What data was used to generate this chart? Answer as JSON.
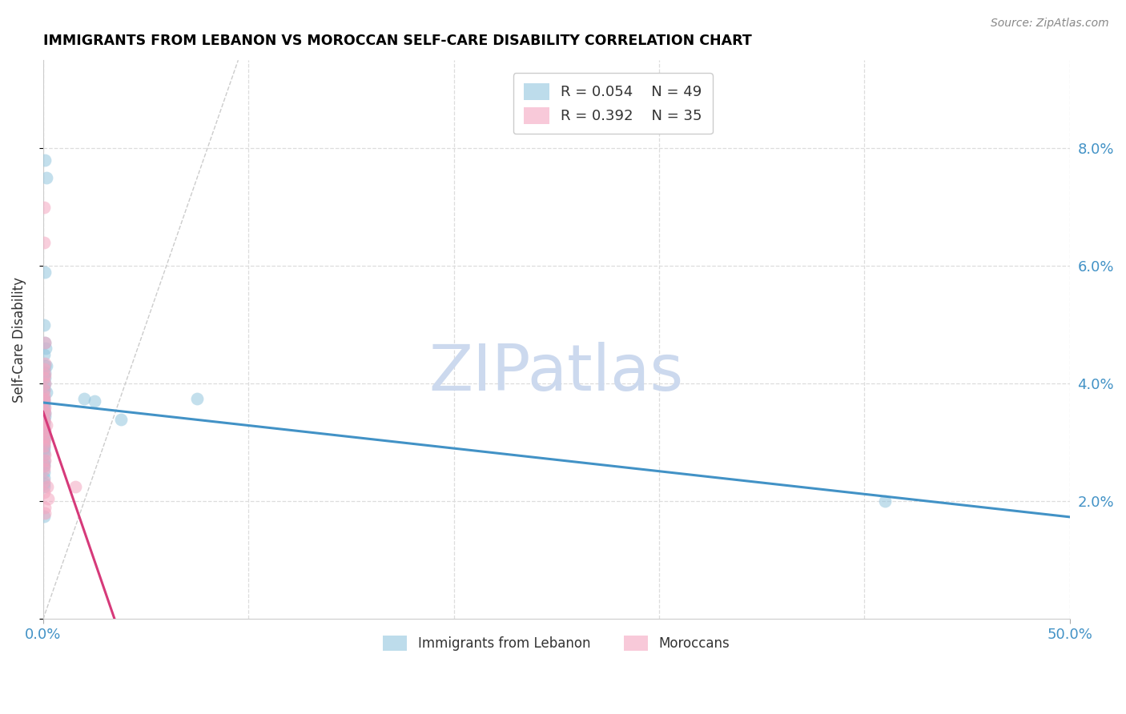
{
  "title": "IMMIGRANTS FROM LEBANON VS MOROCCAN SELF-CARE DISABILITY CORRELATION CHART",
  "source": "Source: ZipAtlas.com",
  "ylabel": "Self-Care Disability",
  "legend1_r": "0.054",
  "legend1_n": "49",
  "legend2_r": "0.392",
  "legend2_n": "35",
  "color_blue": "#92c5de",
  "color_pink": "#f4a6c0",
  "line_blue": "#4292c6",
  "line_pink": "#d63a7a",
  "scatter_blue": [
    [
      0.0005,
      0.05
    ],
    [
      0.001,
      0.059
    ],
    [
      0.0015,
      0.075
    ],
    [
      0.001,
      0.078
    ],
    [
      0.0008,
      0.047
    ],
    [
      0.0012,
      0.046
    ],
    [
      0.0006,
      0.045
    ],
    [
      0.0015,
      0.043
    ],
    [
      0.001,
      0.043
    ],
    [
      0.0008,
      0.042
    ],
    [
      0.0006,
      0.0415
    ],
    [
      0.001,
      0.041
    ],
    [
      0.0008,
      0.04
    ],
    [
      0.0006,
      0.0395
    ],
    [
      0.0006,
      0.039
    ],
    [
      0.0015,
      0.0385
    ],
    [
      0.0006,
      0.0375
    ],
    [
      0.0006,
      0.037
    ],
    [
      0.0006,
      0.0365
    ],
    [
      0.0006,
      0.036
    ],
    [
      0.0006,
      0.0355
    ],
    [
      0.001,
      0.035
    ],
    [
      0.001,
      0.0345
    ],
    [
      0.0006,
      0.034
    ],
    [
      0.0006,
      0.0335
    ],
    [
      0.0006,
      0.033
    ],
    [
      0.0006,
      0.0325
    ],
    [
      0.0006,
      0.032
    ],
    [
      0.0006,
      0.0315
    ],
    [
      0.001,
      0.031
    ],
    [
      0.0006,
      0.0305
    ],
    [
      0.0006,
      0.03
    ],
    [
      0.0006,
      0.0295
    ],
    [
      0.0006,
      0.029
    ],
    [
      0.0006,
      0.0285
    ],
    [
      0.0006,
      0.028
    ],
    [
      0.0006,
      0.027
    ],
    [
      0.0006,
      0.0265
    ],
    [
      0.0006,
      0.026
    ],
    [
      0.0006,
      0.025
    ],
    [
      0.0006,
      0.024
    ],
    [
      0.0006,
      0.023
    ],
    [
      0.0006,
      0.0225
    ],
    [
      0.0006,
      0.0175
    ],
    [
      0.02,
      0.0375
    ],
    [
      0.025,
      0.037
    ],
    [
      0.038,
      0.034
    ],
    [
      0.075,
      0.0375
    ],
    [
      0.41,
      0.02
    ]
  ],
  "scatter_pink": [
    [
      0.0006,
      0.07
    ],
    [
      0.0006,
      0.064
    ],
    [
      0.001,
      0.047
    ],
    [
      0.001,
      0.0435
    ],
    [
      0.0006,
      0.0425
    ],
    [
      0.001,
      0.0415
    ],
    [
      0.0006,
      0.041
    ],
    [
      0.001,
      0.04
    ],
    [
      0.0006,
      0.039
    ],
    [
      0.0006,
      0.038
    ],
    [
      0.0006,
      0.0375
    ],
    [
      0.0006,
      0.037
    ],
    [
      0.001,
      0.036
    ],
    [
      0.0006,
      0.0355
    ],
    [
      0.001,
      0.035
    ],
    [
      0.0006,
      0.034
    ],
    [
      0.0006,
      0.0335
    ],
    [
      0.0015,
      0.033
    ],
    [
      0.0006,
      0.0325
    ],
    [
      0.001,
      0.032
    ],
    [
      0.0006,
      0.031
    ],
    [
      0.001,
      0.0305
    ],
    [
      0.0006,
      0.03
    ],
    [
      0.0006,
      0.0295
    ],
    [
      0.001,
      0.028
    ],
    [
      0.001,
      0.027
    ],
    [
      0.0006,
      0.026
    ],
    [
      0.0006,
      0.0255
    ],
    [
      0.0006,
      0.0235
    ],
    [
      0.002,
      0.0225
    ],
    [
      0.0006,
      0.0215
    ],
    [
      0.0025,
      0.0205
    ],
    [
      0.001,
      0.019
    ],
    [
      0.001,
      0.018
    ],
    [
      0.0155,
      0.0225
    ]
  ],
  "xlim": [
    0.0,
    0.5
  ],
  "ylim": [
    0.0,
    0.095
  ],
  "ytick_vals": [
    0.0,
    0.02,
    0.04,
    0.06,
    0.08
  ],
  "ytick_labels": [
    "",
    "2.0%",
    "4.0%",
    "6.0%",
    "8.0%"
  ],
  "xtick_vals": [
    0.0,
    0.5
  ],
  "xtick_labels": [
    "0.0%",
    "50.0%"
  ],
  "diag_color": "#cccccc",
  "grid_color": "#dddddd",
  "watermark": "ZIPatlas",
  "watermark_color": "#ccd9ee",
  "bg_color": "#ffffff"
}
